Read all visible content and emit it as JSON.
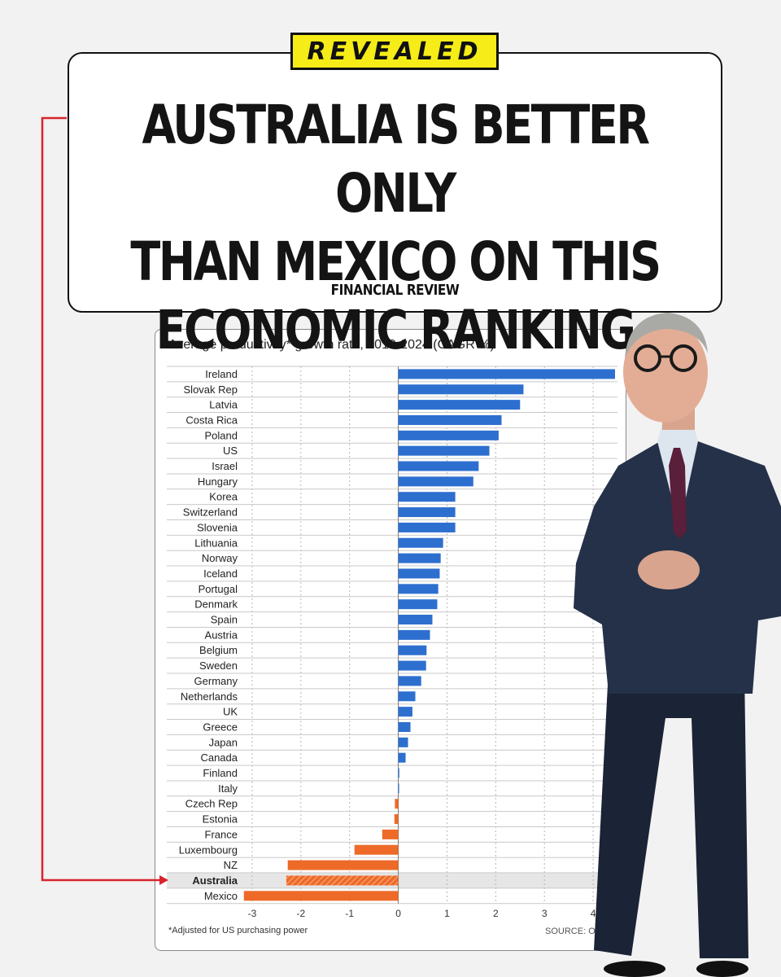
{
  "badge": {
    "label": "REVEALED"
  },
  "headline": {
    "lines": [
      "AUSTRALIA IS BETTER ONLY",
      "THAN MEXICO ON THIS",
      "ECONOMIC RANKING"
    ],
    "source": "FINANCIAL REVIEW"
  },
  "colors": {
    "positive": "#2d6fcf",
    "negative": "#ee6a28",
    "highlight_row": "#e6e6e6",
    "connector": "#d9232d",
    "badge": "#f6ec17"
  },
  "chart_data": {
    "type": "bar",
    "orientation": "horizontal",
    "title": "Average productivity* growth rate, 2019-2024 (CAGR %)",
    "categories": [
      "Ireland",
      "Slovak Rep",
      "Latvia",
      "Costa Rica",
      "Poland",
      "US",
      "Israel",
      "Hungary",
      "Korea",
      "Switzerland",
      "Slovenia",
      "Lithuania",
      "Norway",
      "Iceland",
      "Portugal",
      "Denmark",
      "Spain",
      "Austria",
      "Belgium",
      "Sweden",
      "Germany",
      "Netherlands",
      "UK",
      "Greece",
      "Japan",
      "Canada",
      "Finland",
      "Italy",
      "Czech Rep",
      "Estonia",
      "France",
      "Luxembourg",
      "NZ",
      "Australia",
      "Mexico"
    ],
    "values": [
      4.45,
      2.57,
      2.5,
      2.12,
      2.06,
      1.87,
      1.65,
      1.54,
      1.17,
      1.17,
      1.17,
      0.92,
      0.87,
      0.85,
      0.82,
      0.8,
      0.7,
      0.65,
      0.58,
      0.57,
      0.47,
      0.35,
      0.29,
      0.25,
      0.2,
      0.15,
      0.02,
      0.0,
      -0.07,
      -0.08,
      -0.33,
      -0.9,
      -2.27,
      -2.3,
      -3.17
    ],
    "highlight": "Australia",
    "xlim": [
      -3.2,
      4.5
    ],
    "xticks": [
      -3,
      -2,
      -1,
      0,
      1,
      2,
      3,
      4
    ],
    "footnote": "*Adjusted for US purchasing power",
    "source": "SOURCE: OECD"
  }
}
